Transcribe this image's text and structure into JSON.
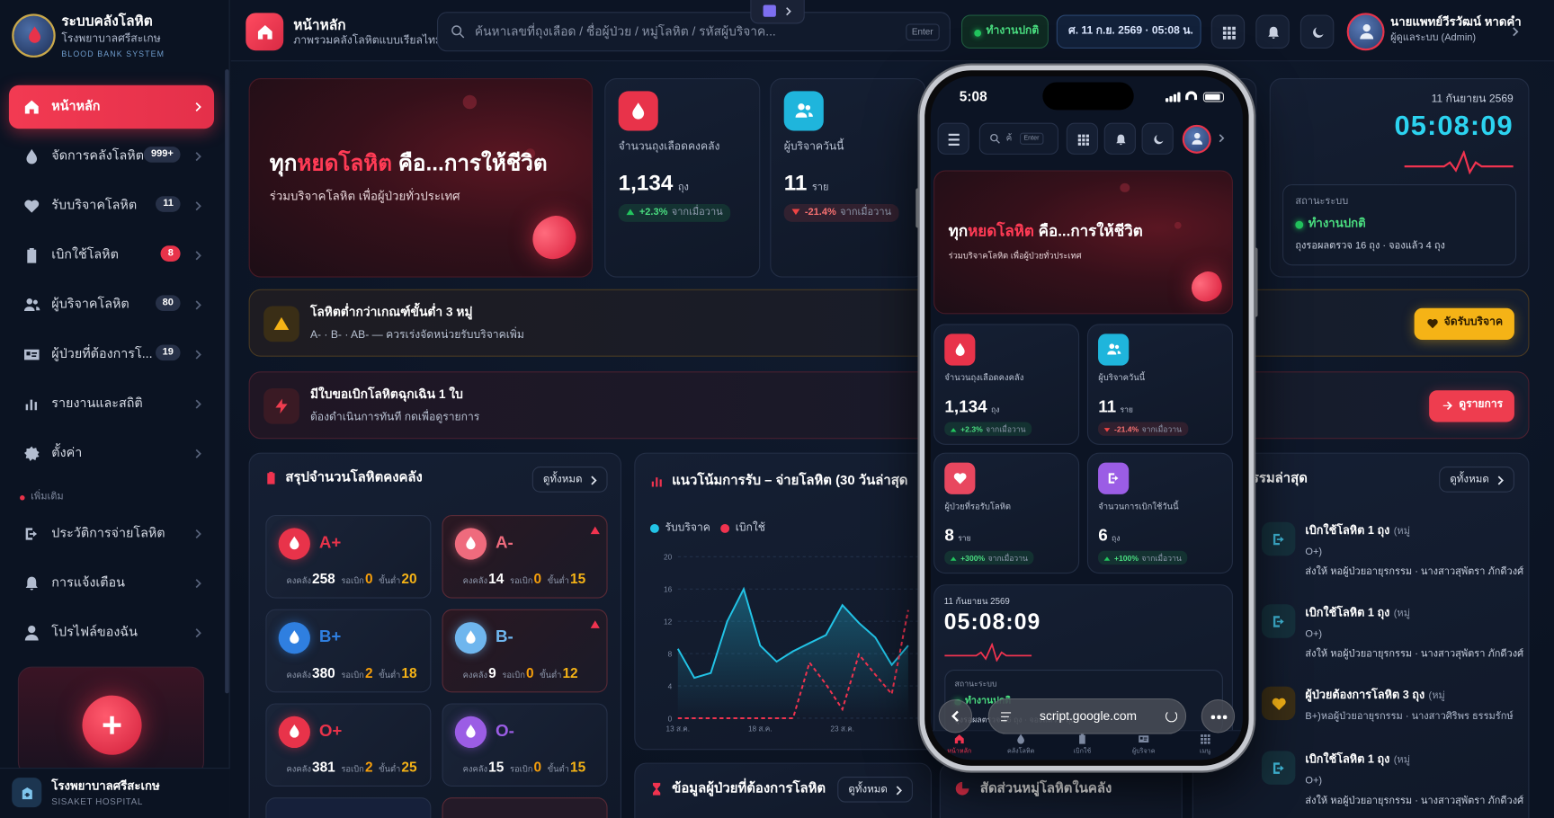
{
  "sidebar": {
    "brand": {
      "title": "ระบบคลังโลหิต",
      "subtitle": "โรงพยาบาลศรีสะเกษ",
      "tagline": "BLOOD BANK SYSTEM"
    },
    "menu": [
      {
        "label": "หน้าหลัก",
        "active": true
      },
      {
        "label": "จัดการคลังโลหิต",
        "badge": "999+"
      },
      {
        "label": "รับบริจาคโลหิต",
        "badge": "11"
      },
      {
        "label": "เบิกใช้โลหิต",
        "badge": "8",
        "badge_alert": true
      },
      {
        "label": "ผู้บริจาคโลหิต",
        "badge": "80"
      },
      {
        "label": "ผู้ป่วยที่ต้องการโ...",
        "badge": "19"
      },
      {
        "label": "รายงานและสถิติ"
      },
      {
        "label": "ตั้งค่า"
      }
    ],
    "section": "เพิ่มเติม",
    "more": [
      {
        "label": "ประวัติการจ่ายโลหิต"
      },
      {
        "label": "การแจ้งเตือน"
      },
      {
        "label": "โปรไฟล์ของฉัน"
      }
    ],
    "footer": {
      "title": "โรงพยาบาลศรีสะเกษ",
      "subtitle": "SISAKET HOSPITAL"
    }
  },
  "header": {
    "title": "หน้าหลัก",
    "subtitle": "ภาพรวมคลังโลหิตแบบเรียลไทม์",
    "search_placeholder": "ค้นหาเลขที่ถุงเลือด / ชื่อผู้ป่วย / หมู่โลหิต / รหัสผู้บริจาค...",
    "search_key": "Enter",
    "status": "ทำงานปกติ",
    "datetime": "ศ. 11 ก.ย. 2569 · 05:08 น.",
    "user_name": "นายแพทย์วีรวัฒน์ หาดคำ",
    "user_role": "ผู้ดูแลระบบ (Admin)"
  },
  "hero": {
    "title_start": "ทุก",
    "title_highlight": "หยดโลหิต",
    "title_end": " คือ...การให้ชีวิต",
    "subtitle": "ร่วมบริจาคโลหิต เพื่อผู้ป่วยทั่วประเทศ"
  },
  "stats": [
    {
      "label": "จำนวนถุงเลือดคงคลัง",
      "value": "1,134",
      "unit": "ถุง",
      "change": "+2.3%",
      "compare": "จากเมื่อวาน",
      "direction": "up",
      "color": "#e8334a"
    },
    {
      "label": "ผู้บริจาควันนี้",
      "value": "11",
      "unit": "ราย",
      "change": "-21.4%",
      "compare": "จากเมื่อวาน",
      "direction": "down",
      "color": "#1fb5dc"
    },
    {
      "label": "ผู้ป่วยที่รอรับโลหิต",
      "value": "8",
      "unit": "ราย",
      "change": "+300%",
      "compare": "จากเมื่อวาน",
      "direction": "up",
      "color": "#e8475f"
    },
    {
      "label": "จำนวนการเบิกใช้วันนี้",
      "value": "6",
      "unit": "ถุง",
      "change": "+100%",
      "compare": "จากเมื่อวาน",
      "direction": "up",
      "color": "#9b5de5"
    }
  ],
  "clock": {
    "date": "11 กันยายน 2569",
    "time": "05:08:09",
    "status_label": "สถานะระบบ",
    "status": "ทำงานปกติ",
    "detail": "ถุงรอผลตรวจ 16 ถุง · จองแล้ว 4 ถุง"
  },
  "alerts": [
    {
      "title": "โลหิตต่ำกว่าเกณฑ์ขั้นต่ำ 3 หมู่",
      "subtitle": "A- · B- · AB- — ควรเร่งจัดหน่วยรับบริจาคเพิ่ม",
      "button": "จัดรับบริจาค",
      "color": "#f5b316"
    },
    {
      "title": "มีใบขอเบิกโลหิตฉุกเฉิน 1 ใบ",
      "subtitle": "ต้องดำเนินการทันที กดเพื่อดูรายการ",
      "button": "ดูรายการ",
      "color": "#ee3d4f"
    }
  ],
  "inventory": {
    "title": "สรุปจำนวนโลหิตคงคลัง",
    "view_all": "ดูทั้งหมด",
    "stock_label": "คงคลัง",
    "pending_label": "รอเบิก",
    "min_label": "ขั้นต่ำ",
    "groups": [
      {
        "group": "A+",
        "stock": 258,
        "pending": 0,
        "min": 20,
        "color": "#e8334a"
      },
      {
        "group": "A-",
        "stock": 14,
        "pending": 0,
        "min": 15,
        "color": "#ef6b7d",
        "low": true
      },
      {
        "group": "B+",
        "stock": 380,
        "pending": 2,
        "min": 18,
        "color": "#2f7fe0"
      },
      {
        "group": "B-",
        "stock": 9,
        "pending": 0,
        "min": 12,
        "color": "#6fb6ee",
        "low": true
      },
      {
        "group": "O+",
        "stock": 381,
        "pending": 2,
        "min": 25,
        "color": "#e8334a"
      },
      {
        "group": "O-",
        "stock": 15,
        "pending": 0,
        "min": 15,
        "color": "#9b5de5"
      }
    ]
  },
  "trend": {
    "type": "line",
    "title": "แนวโน้มการรับ – จ่ายโลหิต (30 วันล่าสุด",
    "categories": [
      "13 ส.ค.",
      null,
      null,
      null,
      null,
      "18 ส.ค.",
      null,
      null,
      null,
      null,
      "23 ส.ค.",
      null,
      null,
      null,
      null
    ],
    "series": [
      {
        "name": "รับบริจาค",
        "color": "#22c3e6",
        "values": [
          8.6,
          5,
          5.6,
          12,
          16,
          9,
          7,
          8.3,
          9.3,
          10.3,
          14,
          11.8,
          10,
          6.6,
          9
        ]
      },
      {
        "name": "เบิกใช้",
        "color": "#f0334f",
        "dashed": true,
        "values": [
          0,
          0,
          0,
          0,
          0,
          0,
          0,
          0,
          6.9,
          4.2,
          1.1,
          7.9,
          5.4,
          3,
          13.4
        ]
      }
    ],
    "ylim": [
      0,
      20
    ],
    "yticks": [
      0,
      4,
      8,
      12,
      16,
      20
    ],
    "grid": true
  },
  "patients": {
    "title": "ข้อมูลผู้ป่วยที่ต้องการโลหิต",
    "view_all": "ดูทั้งหมด"
  },
  "distribution": {
    "title": "สัดส่วนหมู่โลหิตในคลัง"
  },
  "recent": {
    "title": "รรมล่าสุด",
    "view_all": "ดูทั้งหมด",
    "items": [
      {
        "title": "เบิกใช้โลหิต 1 ถุง",
        "tag": "(หมู่",
        "line2": "O+)",
        "detail": "ส่งให้ หอผู้ป่วยอายุรกรรม · นางสาวสุพัตรา ภักดีวงศ์",
        "kind": "issue"
      },
      {
        "title": "เบิกใช้โลหิต 1 ถุง",
        "tag": "(หมู่",
        "line2": "O+)",
        "detail": "ส่งให้ หอผู้ป่วยอายุรกรรม · นางสาวสุพัตรา ภักดีวงศ์",
        "kind": "issue"
      },
      {
        "title": "ผู้ป่วยต้องการโลหิต 3 ถุง",
        "tag": "(หมู่",
        "line2": "B+)หอผู้ป่วยอายุรกรรม · นางสาวศิริพร ธรรมรักษ์",
        "kind": "request"
      },
      {
        "title": "เบิกใช้โลหิต 1 ถุง",
        "tag": "(หมู่",
        "line2": "O+)",
        "detail": "ส่งให้ หอผู้ป่วยอายุรกรรม · นางสาวสุพัตรา ภักดีวงศ์",
        "kind": "issue"
      }
    ]
  },
  "phone": {
    "time": "5:08",
    "search": "ค้",
    "search_key": "Enter",
    "url": "script.google.com",
    "nav": [
      "หน้าหลัก",
      "คลังโลหิต",
      "เบิกใช้",
      "ผู้บริจาค",
      "เมนู"
    ]
  }
}
